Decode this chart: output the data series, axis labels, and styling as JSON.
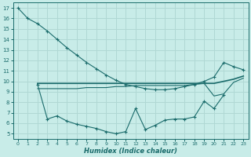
{
  "xlabel": "Humidex (Indice chaleur)",
  "xlim": [
    -0.5,
    23.5
  ],
  "ylim": [
    4.5,
    17.5
  ],
  "yticks": [
    5,
    6,
    7,
    8,
    9,
    10,
    11,
    12,
    13,
    14,
    15,
    16,
    17
  ],
  "xticks": [
    0,
    1,
    2,
    3,
    4,
    5,
    6,
    7,
    8,
    9,
    10,
    11,
    12,
    13,
    14,
    15,
    16,
    17,
    18,
    19,
    20,
    21,
    22,
    23
  ],
  "bg_color": "#c8ece8",
  "line_color": "#1a6b6b",
  "grid_color": "#b0d8d4",
  "line1_x": [
    0,
    1,
    2,
    3,
    4,
    5,
    6,
    7,
    8,
    9,
    10,
    11,
    12,
    13,
    14,
    15,
    16,
    17,
    18,
    19,
    20,
    21,
    22,
    23
  ],
  "line1_y": [
    17,
    16,
    15.5,
    14.8,
    14.0,
    13.2,
    12.5,
    11.8,
    11.2,
    10.6,
    10.1,
    9.7,
    9.5,
    9.3,
    9.2,
    9.2,
    9.3,
    9.5,
    9.7,
    10.0,
    10.4,
    11.8,
    11.4,
    11.1
  ],
  "line2_x": [
    2,
    3,
    4,
    5,
    6,
    7,
    8,
    9,
    10,
    11,
    12,
    13,
    14,
    15,
    16,
    17,
    18,
    19,
    20,
    21,
    22,
    23
  ],
  "line2_y": [
    9.8,
    9.8,
    9.8,
    9.8,
    9.8,
    9.8,
    9.8,
    9.8,
    9.8,
    9.8,
    9.8,
    9.8,
    9.8,
    9.8,
    9.8,
    9.8,
    9.8,
    9.8,
    9.8,
    10.0,
    10.2,
    10.5
  ],
  "line3_x": [
    2,
    3,
    4,
    5,
    6,
    7,
    8,
    9,
    10,
    11,
    12,
    13,
    14,
    15,
    16,
    17,
    18,
    19,
    20,
    21,
    22,
    23
  ],
  "line3_y": [
    9.3,
    9.3,
    9.3,
    9.3,
    9.3,
    9.4,
    9.4,
    9.4,
    9.5,
    9.5,
    9.6,
    9.6,
    9.6,
    9.6,
    9.6,
    9.6,
    9.7,
    9.8,
    8.6,
    8.8,
    9.9,
    10.3
  ],
  "line4_x": [
    2,
    3,
    4,
    5,
    6,
    7,
    8,
    9,
    10,
    11,
    12,
    13,
    14,
    15,
    16,
    17,
    18,
    19,
    20,
    21
  ],
  "line4_y": [
    9.7,
    6.4,
    6.7,
    6.2,
    5.9,
    5.7,
    5.5,
    5.2,
    5.0,
    5.2,
    7.4,
    5.4,
    5.8,
    6.3,
    6.4,
    6.4,
    6.6,
    8.1,
    7.4,
    8.7
  ]
}
